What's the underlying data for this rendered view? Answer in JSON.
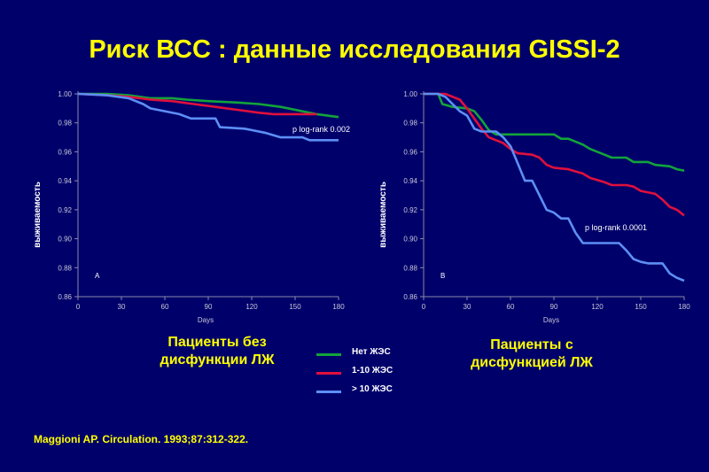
{
  "slide": {
    "title": "Риск ВСС :  данные исследования GISSI-2",
    "caption_a": "Пациенты без\n дисфункции ЛЖ",
    "caption_b": "Пациенты с\nдисфункцией ЛЖ",
    "citation": "Maggioni AP.  Circulation.  1993;87:312-322.",
    "legend": [
      {
        "label": "Нет ЖЭС",
        "color": "#12a43a"
      },
      {
        "label": "1-10 ЖЭС",
        "color": "#e0103c"
      },
      {
        "label": "> 10 ЖЭС",
        "color": "#5d8ff5"
      }
    ]
  },
  "chart_data": [
    {
      "type": "line",
      "panel_label": "A",
      "xlabel": "Days",
      "ylabel": "выживаемость",
      "xlim": [
        0,
        180
      ],
      "ylim": [
        0.86,
        1.0
      ],
      "xticks": [
        0,
        30,
        60,
        90,
        120,
        150,
        180
      ],
      "yticks": [
        0.86,
        0.88,
        0.9,
        0.92,
        0.94,
        0.96,
        0.98,
        1.0
      ],
      "annotation": "p log-rank 0.002",
      "grid": false,
      "series": [
        {
          "name": "Нет ЖЭС",
          "color": "#12a43a",
          "points": [
            [
              0,
              1.0
            ],
            [
              20,
              1.0
            ],
            [
              35,
              0.999
            ],
            [
              50,
              0.997
            ],
            [
              65,
              0.997
            ],
            [
              75,
              0.996
            ],
            [
              90,
              0.995
            ],
            [
              110,
              0.994
            ],
            [
              125,
              0.993
            ],
            [
              140,
              0.991
            ],
            [
              155,
              0.988
            ],
            [
              165,
              0.986
            ],
            [
              180,
              0.984
            ]
          ]
        },
        {
          "name": "1-10 ЖЭС",
          "color": "#e0103c",
          "points": [
            [
              0,
              1.0
            ],
            [
              20,
              0.999
            ],
            [
              35,
              0.998
            ],
            [
              50,
              0.996
            ],
            [
              65,
              0.995
            ],
            [
              80,
              0.993
            ],
            [
              95,
              0.991
            ],
            [
              110,
              0.989
            ],
            [
              125,
              0.987
            ],
            [
              135,
              0.986
            ],
            [
              150,
              0.986
            ],
            [
              165,
              0.986
            ]
          ]
        },
        {
          "name": "> 10 ЖЭС",
          "color": "#5d8ff5",
          "points": [
            [
              0,
              1.0
            ],
            [
              20,
              0.999
            ],
            [
              35,
              0.997
            ],
            [
              45,
              0.993
            ],
            [
              50,
              0.99
            ],
            [
              60,
              0.988
            ],
            [
              70,
              0.986
            ],
            [
              78,
              0.983
            ],
            [
              95,
              0.983
            ],
            [
              98,
              0.977
            ],
            [
              115,
              0.976
            ],
            [
              120,
              0.975
            ],
            [
              130,
              0.973
            ],
            [
              140,
              0.97
            ],
            [
              155,
              0.97
            ],
            [
              160,
              0.968
            ],
            [
              180,
              0.968
            ]
          ]
        }
      ]
    },
    {
      "type": "line",
      "panel_label": "B",
      "xlabel": "Days",
      "ylabel": "выживаемость",
      "xlim": [
        0,
        180
      ],
      "ylim": [
        0.86,
        1.0
      ],
      "xticks": [
        0,
        30,
        60,
        90,
        120,
        150,
        180
      ],
      "yticks": [
        0.86,
        0.88,
        0.9,
        0.92,
        0.94,
        0.96,
        0.98,
        1.0
      ],
      "annotation": "p log-rank 0.0001",
      "grid": false,
      "series": [
        {
          "name": "Нет ЖЭС",
          "color": "#12a43a",
          "points": [
            [
              0,
              1.0
            ],
            [
              10,
              1.0
            ],
            [
              13,
              0.993
            ],
            [
              20,
              0.991
            ],
            [
              30,
              0.99
            ],
            [
              35,
              0.988
            ],
            [
              40,
              0.982
            ],
            [
              45,
              0.975
            ],
            [
              50,
              0.972
            ],
            [
              60,
              0.972
            ],
            [
              90,
              0.972
            ],
            [
              95,
              0.969
            ],
            [
              100,
              0.969
            ],
            [
              110,
              0.965
            ],
            [
              115,
              0.962
            ],
            [
              125,
              0.958
            ],
            [
              130,
              0.956
            ],
            [
              140,
              0.956
            ],
            [
              145,
              0.953
            ],
            [
              155,
              0.953
            ],
            [
              160,
              0.951
            ],
            [
              170,
              0.95
            ],
            [
              175,
              0.948
            ],
            [
              180,
              0.947
            ]
          ]
        },
        {
          "name": "1-10 ЖЭС",
          "color": "#e0103c",
          "points": [
            [
              0,
              1.0
            ],
            [
              15,
              1.0
            ],
            [
              20,
              0.998
            ],
            [
              25,
              0.996
            ],
            [
              30,
              0.99
            ],
            [
              40,
              0.976
            ],
            [
              45,
              0.97
            ],
            [
              55,
              0.966
            ],
            [
              60,
              0.962
            ],
            [
              65,
              0.959
            ],
            [
              75,
              0.958
            ],
            [
              80,
              0.956
            ],
            [
              85,
              0.951
            ],
            [
              90,
              0.949
            ],
            [
              100,
              0.948
            ],
            [
              110,
              0.945
            ],
            [
              115,
              0.942
            ],
            [
              125,
              0.939
            ],
            [
              130,
              0.937
            ],
            [
              140,
              0.937
            ],
            [
              145,
              0.936
            ],
            [
              150,
              0.933
            ],
            [
              160,
              0.931
            ],
            [
              165,
              0.927
            ],
            [
              170,
              0.922
            ],
            [
              175,
              0.92
            ],
            [
              180,
              0.916
            ]
          ]
        },
        {
          "name": "> 10 ЖЭС",
          "color": "#5d8ff5",
          "points": [
            [
              0,
              1.0
            ],
            [
              10,
              1.0
            ],
            [
              15,
              0.998
            ],
            [
              20,
              0.993
            ],
            [
              25,
              0.988
            ],
            [
              30,
              0.985
            ],
            [
              35,
              0.976
            ],
            [
              40,
              0.974
            ],
            [
              50,
              0.974
            ],
            [
              55,
              0.97
            ],
            [
              60,
              0.964
            ],
            [
              65,
              0.952
            ],
            [
              70,
              0.94
            ],
            [
              75,
              0.94
            ],
            [
              80,
              0.93
            ],
            [
              85,
              0.92
            ],
            [
              90,
              0.918
            ],
            [
              95,
              0.914
            ],
            [
              100,
              0.914
            ],
            [
              105,
              0.904
            ],
            [
              110,
              0.897
            ],
            [
              135,
              0.897
            ],
            [
              140,
              0.892
            ],
            [
              145,
              0.886
            ],
            [
              150,
              0.884
            ],
            [
              155,
              0.883
            ],
            [
              165,
              0.883
            ],
            [
              170,
              0.876
            ],
            [
              175,
              0.873
            ],
            [
              180,
              0.871
            ]
          ]
        }
      ]
    }
  ]
}
